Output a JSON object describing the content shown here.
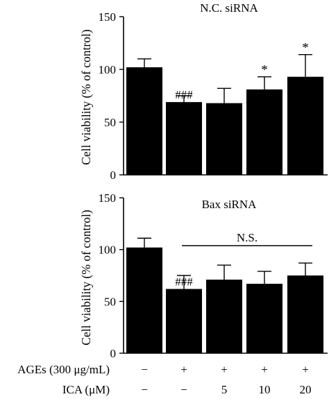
{
  "chart_data": [
    {
      "type": "bar",
      "title": "N.C. siRNA",
      "ylabel": "Cell viability (% of control)",
      "xlabel": "",
      "ylim": [
        0,
        150
      ],
      "yticks": [
        "0",
        "50",
        "100",
        "150"
      ],
      "grid": false,
      "bar_color": "#000000",
      "categories": [
        "control",
        "AGEs",
        "AGEs + ICA 5",
        "AGEs + ICA 10",
        "AGEs + ICA 20"
      ],
      "values": [
        102,
        69,
        68,
        81,
        93
      ],
      "errors": [
        8,
        6,
        14,
        12,
        21
      ],
      "labels": [
        "",
        "###",
        "",
        "*",
        "*"
      ]
    },
    {
      "type": "bar",
      "title": "Bax siRNA",
      "ylabel": "Cell viability (% of control)",
      "xlabel": "",
      "ylim": [
        0,
        150
      ],
      "yticks": [
        "0",
        "50",
        "100",
        "150"
      ],
      "grid": false,
      "bar_color": "#000000",
      "categories": [
        "control",
        "AGEs",
        "AGEs + ICA 5",
        "AGEs + ICA 10",
        "AGEs + ICA 20"
      ],
      "values": [
        102,
        62,
        71,
        67,
        75
      ],
      "errors": [
        9,
        13,
        14,
        12,
        12
      ],
      "labels": [
        "",
        "###",
        "",
        "",
        ""
      ],
      "bracket_label": "N.S."
    }
  ],
  "conditions": [
    {
      "label": "AGEs (300 μg/mL)",
      "values": [
        "−",
        "+",
        "+",
        "+",
        "+"
      ]
    },
    {
      "label": "ICA (μM)",
      "values": [
        "−",
        "−",
        "5",
        "10",
        "20"
      ]
    }
  ]
}
